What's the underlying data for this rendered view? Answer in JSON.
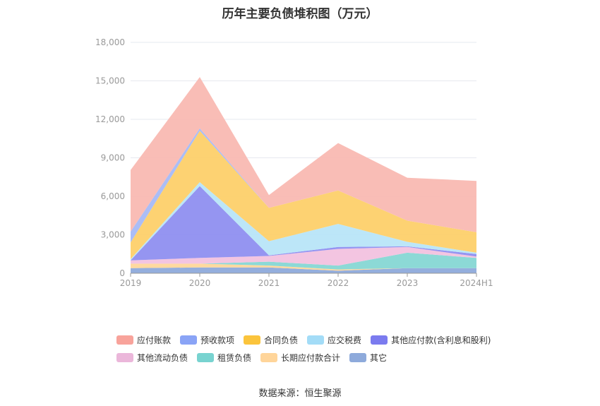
{
  "title": "历年主要负债堆积图（万元）",
  "source": "数据来源：恒生聚源",
  "chart_data": {
    "type": "area",
    "stacked": true,
    "title": "历年主要负债堆积图（万元）",
    "categories": [
      "2019",
      "2020",
      "2021",
      "2022",
      "2023",
      "2024H1"
    ],
    "y_ticks": [
      "0",
      "3,000",
      "6,000",
      "9,000",
      "12,000",
      "15,000",
      "18,000"
    ],
    "ylim": [
      0,
      18000
    ],
    "grid": true,
    "legend_position": "bottom",
    "series": [
      {
        "name": "其它",
        "color": "#8eaadb",
        "values": [
          400,
          450,
          450,
          200,
          400,
          400
        ]
      },
      {
        "name": "长期应付款合计",
        "color": "#ffd79a",
        "values": [
          350,
          300,
          150,
          100,
          0,
          0
        ]
      },
      {
        "name": "租赁负债",
        "color": "#86d7d4",
        "values": [
          0,
          0,
          300,
          300,
          1200,
          800
        ]
      },
      {
        "name": "其他流动负债",
        "color": "#f2c2df",
        "values": [
          250,
          450,
          450,
          1300,
          450,
          100
        ]
      },
      {
        "name": "其他应付款(含利息和股利)",
        "color": "#8f8ff0",
        "values": [
          0,
          5600,
          50,
          150,
          50,
          200
        ]
      },
      {
        "name": "应交税费",
        "color": "#b8e5f8",
        "values": [
          100,
          300,
          1100,
          1800,
          350,
          100
        ]
      },
      {
        "name": "合同负债",
        "color": "#fdd06a",
        "values": [
          1300,
          4000,
          2600,
          2600,
          1650,
          1600
        ]
      },
      {
        "name": "预收款项",
        "color": "#a7b9f5",
        "values": [
          850,
          200,
          0,
          0,
          0,
          0
        ]
      },
      {
        "name": "应付账款",
        "color": "#f9b9b2",
        "values": [
          4800,
          4000,
          1000,
          3700,
          3350,
          4000
        ]
      }
    ]
  },
  "legend": [
    {
      "label": "应付账款",
      "color": "#f8a39b"
    },
    {
      "label": "预收款项",
      "color": "#8aa4f6"
    },
    {
      "label": "合同负债",
      "color": "#fbc43c"
    },
    {
      "label": "应交税费",
      "color": "#a3dcf7"
    },
    {
      "label": "其他应付款(含利息和股利)",
      "color": "#7b7bef"
    },
    {
      "label": "其他流动负债",
      "color": "#ebb7da"
    },
    {
      "label": "租赁负债",
      "color": "#78d3d0"
    },
    {
      "label": "长期应付款合计",
      "color": "#ffd59a"
    },
    {
      "label": "其它",
      "color": "#8eaadb"
    }
  ]
}
